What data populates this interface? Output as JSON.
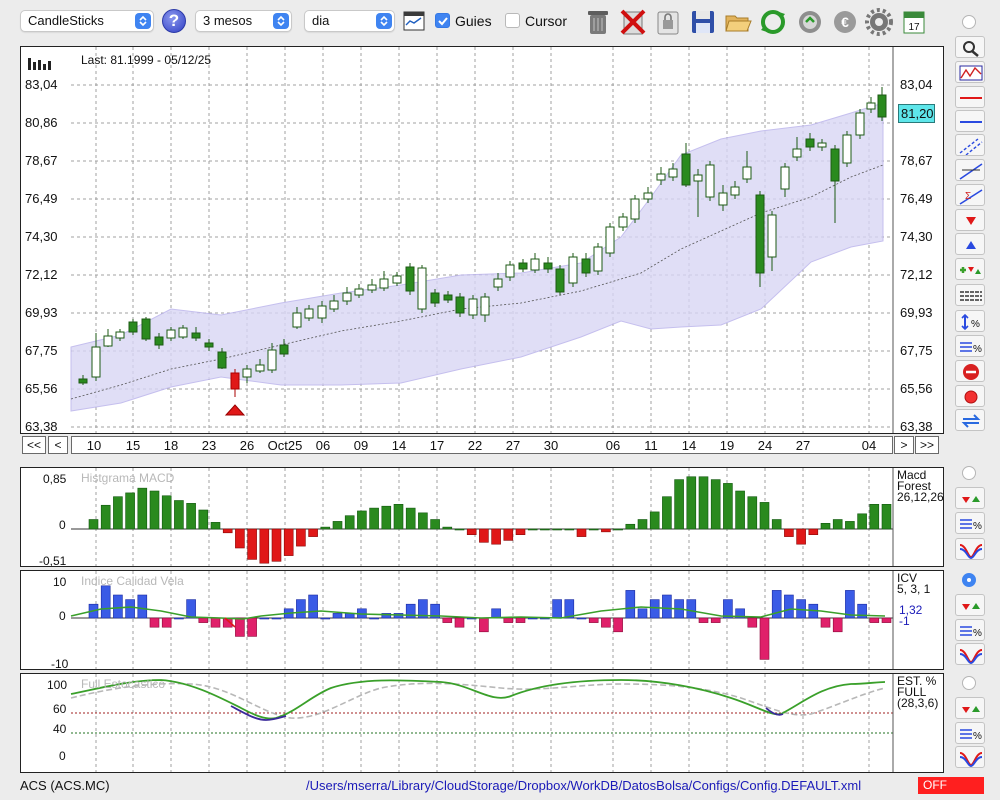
{
  "toolbar": {
    "chart_type": "CandleSticks",
    "period": "3 mesos",
    "interval": "dia",
    "guides_label": "Guies",
    "guides_checked": true,
    "cursor_label": "Cursor",
    "cursor_checked": false,
    "help_label": "?",
    "icons": [
      "table-icon",
      "trash-icon",
      "delete-icon",
      "lock-icon",
      "save-icon",
      "open-folder-icon",
      "refresh-icon",
      "update-icon",
      "currency-icon",
      "gear-icon",
      "calendar-icon"
    ],
    "calendar_day": "17"
  },
  "main_chart": {
    "last_info": "Last: 81.1999 - 05/12/25",
    "price_labels": [
      "83,04",
      "80,86",
      "78,67",
      "76,49",
      "74,30",
      "72,12",
      "69,93",
      "67,75",
      "65,56",
      "63,38"
    ],
    "right_price_labels": [
      "83,04",
      "80,86",
      "78,67",
      "76,49",
      "74,30",
      "72,12",
      "69,93",
      "67,75",
      "65,56",
      "63,38"
    ],
    "current_price_tag": "81,20",
    "colors": {
      "up": "#2a8a1e",
      "down": "#e01818",
      "band": "#d9d6f5",
      "tag": "#5ee6ea"
    }
  },
  "navigation": {
    "first": "<<",
    "prev": "<",
    "next": ">",
    "last": ">>",
    "dates": [
      "10",
      "15",
      "18",
      "23",
      "26",
      "Oct25",
      "06",
      "09",
      "14",
      "17",
      "22",
      "27",
      "30",
      "06",
      "11",
      "14",
      "19",
      "24",
      "27",
      "04"
    ]
  },
  "macd": {
    "title": "Histgrama MACD",
    "labels": [
      "0,85",
      "0",
      "-0,51"
    ],
    "legend_name": "Macd",
    "legend_type": "Forest",
    "legend_params": "26,12,26"
  },
  "icv": {
    "title": "Indice Calidad Vela",
    "labels": [
      "10",
      "0",
      "-10"
    ],
    "legend_name": "ICV",
    "legend_params": "5, 3, 1",
    "value_1": "1,32",
    "value_2": "-1"
  },
  "stoch": {
    "title": "Full Estocastico",
    "labels": [
      "100",
      "60",
      "40",
      "0"
    ],
    "legend_name": "EST. %",
    "legend_type": "FULL",
    "legend_params": "(28,3,6)"
  },
  "status": {
    "ticker": "ACS (ACS.MC)",
    "config_path": "/Users/mserra/Library/CloudStorage/Dropbox/WorkDB/DatosBolsa/Configs/Config.DEFAULT.xml",
    "off_label": "OFF"
  },
  "side_tools": [
    "zoom-icon",
    "chart-scale-icon",
    "horizontal-line-red-icon",
    "horizontal-line-blue-icon",
    "channel-icon",
    "trendline-icon",
    "sigma-line-icon",
    "arrow-down-icon",
    "arrow-up-icon",
    "alert-arrows-icon",
    "lines-icon",
    "vertical-percent-icon",
    "fib-percent-icon",
    "remove-icon",
    "record-icon",
    "swap-icon"
  ]
}
